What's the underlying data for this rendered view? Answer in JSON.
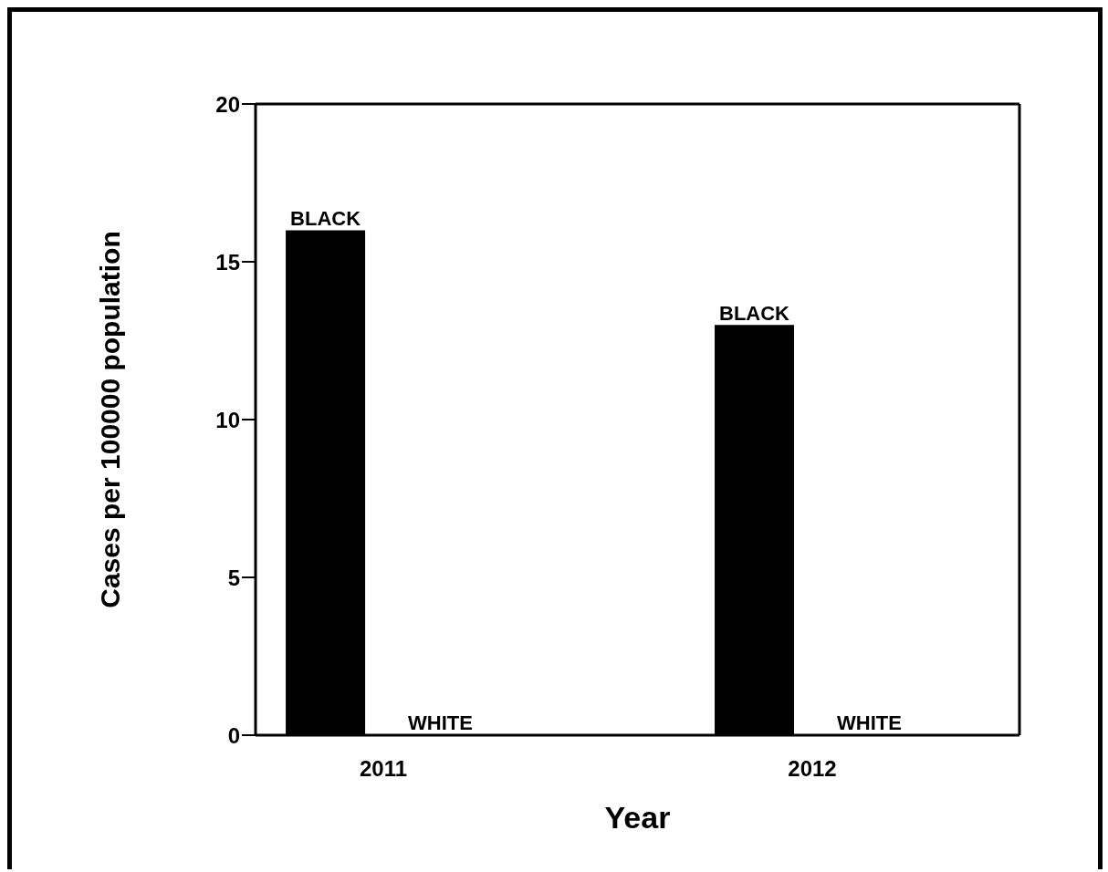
{
  "chart_data": {
    "type": "bar",
    "xlabel": "Year",
    "ylabel": "Cases per 100000 population",
    "categories": [
      "2011",
      "2012"
    ],
    "series": [
      {
        "name": "BLACK",
        "color": "#000000",
        "values": [
          16,
          13
        ]
      },
      {
        "name": "WHITE",
        "color": "#ffffff",
        "values": [
          0,
          0
        ]
      }
    ],
    "ylim": [
      0,
      20
    ],
    "yticks": [
      0,
      5,
      10,
      15,
      20
    ]
  }
}
